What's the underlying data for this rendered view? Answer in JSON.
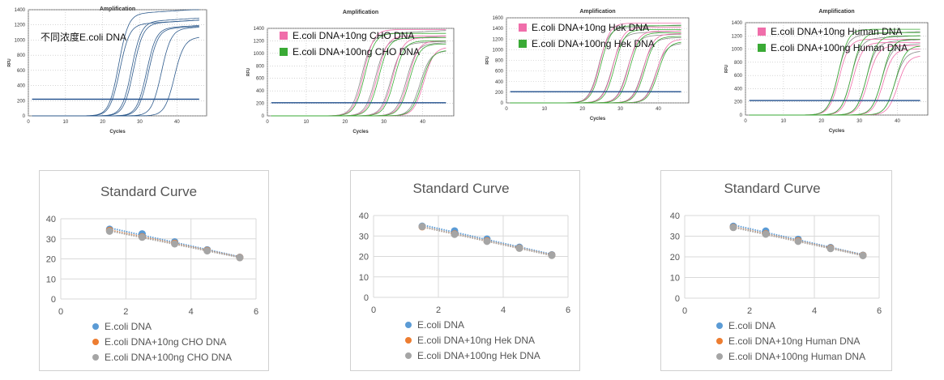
{
  "chart_data": [
    {
      "type": "line",
      "title": "Amplification",
      "xlabel": "Cycles",
      "ylabel": "RFU",
      "xlim": [
        0,
        48
      ],
      "ylim": [
        0,
        1400
      ],
      "xticks": [
        0,
        10,
        20,
        30,
        40
      ],
      "yticks": [
        0,
        200,
        400,
        600,
        800,
        1000,
        1200,
        1400
      ],
      "threshold": 220,
      "annotation": "不同浓度E.coli DNA",
      "legend": [],
      "curves": [
        {
          "color": "#2d5a8c",
          "ct": [
            22,
            22.3,
            25.5,
            26,
            29.5,
            30,
            33.5,
            37
          ],
          "plateau": [
            1340,
            1200,
            1235,
            1210,
            1150,
            1140,
            1140,
            1020
          ]
        }
      ]
    },
    {
      "type": "line",
      "title": "Amplification",
      "xlabel": "Cycles",
      "ylabel": "RFU",
      "xlim": [
        0,
        48
      ],
      "ylim": [
        0,
        1400
      ],
      "xticks": [
        0,
        10,
        20,
        30,
        40
      ],
      "yticks": [
        0,
        200,
        400,
        600,
        800,
        1000,
        1200,
        1400
      ],
      "threshold": 210,
      "legend": [
        {
          "name": "E.coli DNA+10ng CHO DNA",
          "color": "#f06eaa"
        },
        {
          "name": "E.coli DNA+100ng CHO DNA",
          "color": "#3aaa35"
        }
      ],
      "curves": [
        {
          "color": "#8a8a8a",
          "ct": [
            22,
            25.5,
            29.5,
            33.5,
            37
          ],
          "plateau": [
            1300,
            1220,
            1150,
            1140,
            1020
          ]
        },
        {
          "color": "#f06eaa",
          "ct": [
            22.5,
            26,
            30,
            34,
            38
          ],
          "plateau": [
            1380,
            1280,
            1250,
            1200,
            1100
          ]
        },
        {
          "color": "#3aaa35",
          "ct": [
            22.8,
            26.4,
            30.4,
            34.3,
            37.5
          ],
          "plateau": [
            1320,
            1250,
            1200,
            1150,
            1050
          ]
        }
      ]
    },
    {
      "type": "line",
      "title": "Amplification",
      "xlabel": "Cycles",
      "ylabel": "RFU",
      "xlim": [
        0,
        48
      ],
      "ylim": [
        0,
        1600
      ],
      "xticks": [
        0,
        10,
        20,
        30,
        40
      ],
      "yticks": [
        0,
        200,
        400,
        600,
        800,
        1000,
        1200,
        1400,
        1600
      ],
      "threshold": 210,
      "legend": [
        {
          "name": "E.coli DNA+10ng Hek DNA",
          "color": "#f06eaa"
        },
        {
          "name": "E.coli DNA+100ng Hek DNA",
          "color": "#3aaa35"
        }
      ],
      "curves": [
        {
          "color": "#8a8a8a",
          "ct": [
            22,
            25.5,
            29.5,
            33.5,
            37
          ],
          "plateau": [
            1400,
            1300,
            1250,
            1200,
            1100
          ]
        },
        {
          "color": "#f06eaa",
          "ct": [
            22.3,
            25.8,
            29.8,
            33.8,
            37.3
          ],
          "plateau": [
            1500,
            1420,
            1350,
            1300,
            1200
          ]
        },
        {
          "color": "#3aaa35",
          "ct": [
            22.6,
            26.2,
            30.2,
            34.1,
            37.6
          ],
          "plateau": [
            1450,
            1380,
            1320,
            1250,
            1150
          ]
        }
      ]
    },
    {
      "type": "line",
      "title": "Amplification",
      "xlabel": "Cycles",
      "ylabel": "RFU",
      "xlim": [
        0,
        48
      ],
      "ylim": [
        0,
        1400
      ],
      "xticks": [
        0,
        10,
        20,
        30,
        40
      ],
      "yticks": [
        0,
        200,
        400,
        600,
        800,
        1000,
        1200,
        1400
      ],
      "threshold": 220,
      "legend": [
        {
          "name": "E.coli DNA+10ng Human DNA",
          "color": "#f06eaa"
        },
        {
          "name": "E.coli DNA+100ng Human DNA",
          "color": "#3aaa35"
        }
      ],
      "curves": [
        {
          "color": "#8a8a8a",
          "ct": [
            22,
            25.5,
            29.5,
            33.5,
            37
          ],
          "plateau": [
            1200,
            1150,
            1100,
            1050,
            950
          ]
        },
        {
          "color": "#f06eaa",
          "ct": [
            22.4,
            26,
            30,
            34,
            37.8
          ],
          "plateau": [
            1150,
            1100,
            1050,
            1000,
            900
          ]
        },
        {
          "color": "#3aaa35",
          "ct": [
            22.2,
            25.7,
            29.7,
            33.7,
            37.2
          ],
          "plateau": [
            1300,
            1250,
            1200,
            1150,
            1050
          ]
        }
      ]
    },
    {
      "type": "scatter",
      "title": "Standard Curve",
      "xlim": [
        0,
        6
      ],
      "ylim": [
        0,
        40
      ],
      "xticks": [
        0,
        2,
        4,
        6
      ],
      "yticks": [
        0,
        10,
        20,
        30,
        40
      ],
      "grid": true,
      "legend_position": "bottom",
      "trendline": "linear dotted",
      "series": [
        {
          "name": "E.coli DNA",
          "color": "#5b9bd5",
          "x": [
            1.5,
            2.5,
            3.5,
            4.5,
            5.5
          ],
          "y": [
            34.8,
            32.5,
            28.5,
            24.5,
            20.8
          ]
        },
        {
          "name": "E.coli DNA+10ng CHO DNA",
          "color": "#ed7d31",
          "x": [
            1.5,
            2.5,
            3.5,
            4.5,
            5.5
          ],
          "y": [
            34.2,
            31,
            27.8,
            24.2,
            20.7
          ]
        },
        {
          "name": "E.coli DNA+100ng CHO DNA",
          "color": "#a5a5a5",
          "x": [
            1.5,
            2.5,
            3.5,
            4.5,
            5.5
          ],
          "y": [
            33.8,
            30.8,
            27.5,
            24,
            20.6
          ]
        }
      ]
    },
    {
      "type": "scatter",
      "title": "Standard Curve",
      "xlim": [
        0,
        6
      ],
      "ylim": [
        0,
        40
      ],
      "xticks": [
        0,
        2,
        4,
        6
      ],
      "yticks": [
        0,
        10,
        20,
        30,
        40
      ],
      "grid": true,
      "legend_position": "bottom",
      "trendline": "linear dotted",
      "series": [
        {
          "name": "E.coli DNA",
          "color": "#5b9bd5",
          "x": [
            1.5,
            2.5,
            3.5,
            4.5,
            5.5
          ],
          "y": [
            34.8,
            32.5,
            28.5,
            24.5,
            20.8
          ]
        },
        {
          "name": "E.coli DNA+10ng Hek DNA",
          "color": "#ed7d31",
          "x": [
            1.5,
            2.5,
            3.5,
            4.5,
            5.5
          ],
          "y": [
            34.5,
            31,
            27.6,
            24.1,
            20.6
          ]
        },
        {
          "name": "E.coli DNA+100ng Hek DNA",
          "color": "#a5a5a5",
          "x": [
            1.5,
            2.5,
            3.5,
            4.5,
            5.5
          ],
          "y": [
            34.6,
            30.8,
            27.4,
            24,
            20.5
          ]
        }
      ]
    },
    {
      "type": "scatter",
      "title": "Standard Curve",
      "xlim": [
        0,
        6
      ],
      "ylim": [
        0,
        40
      ],
      "xticks": [
        0,
        2,
        4,
        6
      ],
      "yticks": [
        0,
        10,
        20,
        30,
        40
      ],
      "grid": true,
      "legend_position": "bottom",
      "trendline": "linear dotted",
      "series": [
        {
          "name": "E.coli DNA",
          "color": "#5b9bd5",
          "x": [
            1.5,
            2.5,
            3.5,
            4.5,
            5.5
          ],
          "y": [
            34.8,
            32.5,
            28.5,
            24.5,
            20.8
          ]
        },
        {
          "name": "E.coli DNA+10ng Human DNA",
          "color": "#ed7d31",
          "x": [
            1.5,
            2.5,
            3.5,
            4.5,
            5.5
          ],
          "y": [
            34.3,
            31.2,
            27.8,
            24.2,
            20.7
          ]
        },
        {
          "name": "E.coli DNA+100ng Human DNA",
          "color": "#a5a5a5",
          "x": [
            1.5,
            2.5,
            3.5,
            4.5,
            5.5
          ],
          "y": [
            34.2,
            31,
            27.5,
            24,
            20.6
          ]
        }
      ]
    }
  ]
}
